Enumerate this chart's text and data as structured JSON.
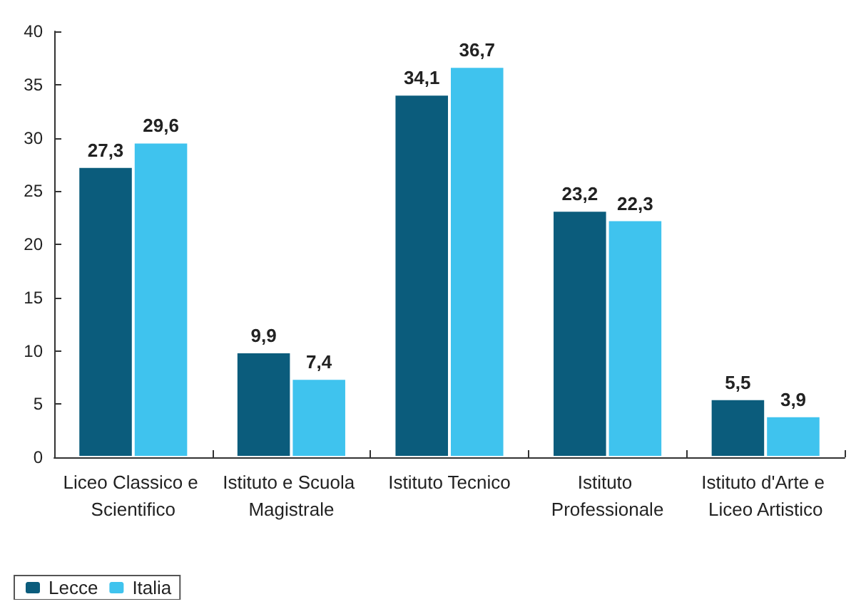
{
  "chart_data": {
    "type": "bar",
    "categories": [
      "Liceo Classico e Scientifico",
      "Istituto e Scuola Magistrale",
      "Istituto Tecnico",
      "Istituto Professionale",
      "Istituto d'Arte e Liceo Artistico"
    ],
    "series": [
      {
        "name": "Lecce",
        "color": "#0b5c7c",
        "values": [
          27.3,
          9.9,
          34.1,
          23.2,
          5.5
        ],
        "value_labels": [
          "27,3",
          "9,9",
          "34,1",
          "23,2",
          "5,5"
        ]
      },
      {
        "name": "Italia",
        "color": "#3fc3ee",
        "values": [
          29.6,
          7.4,
          36.7,
          22.3,
          3.9
        ],
        "value_labels": [
          "29,6",
          "7,4",
          "36,7",
          "22,3",
          "3,9"
        ]
      }
    ],
    "ylim": [
      0,
      40
    ],
    "yticks": [
      0,
      5,
      10,
      15,
      20,
      25,
      30,
      35,
      40
    ],
    "grid": false,
    "legend": "bottom left"
  }
}
